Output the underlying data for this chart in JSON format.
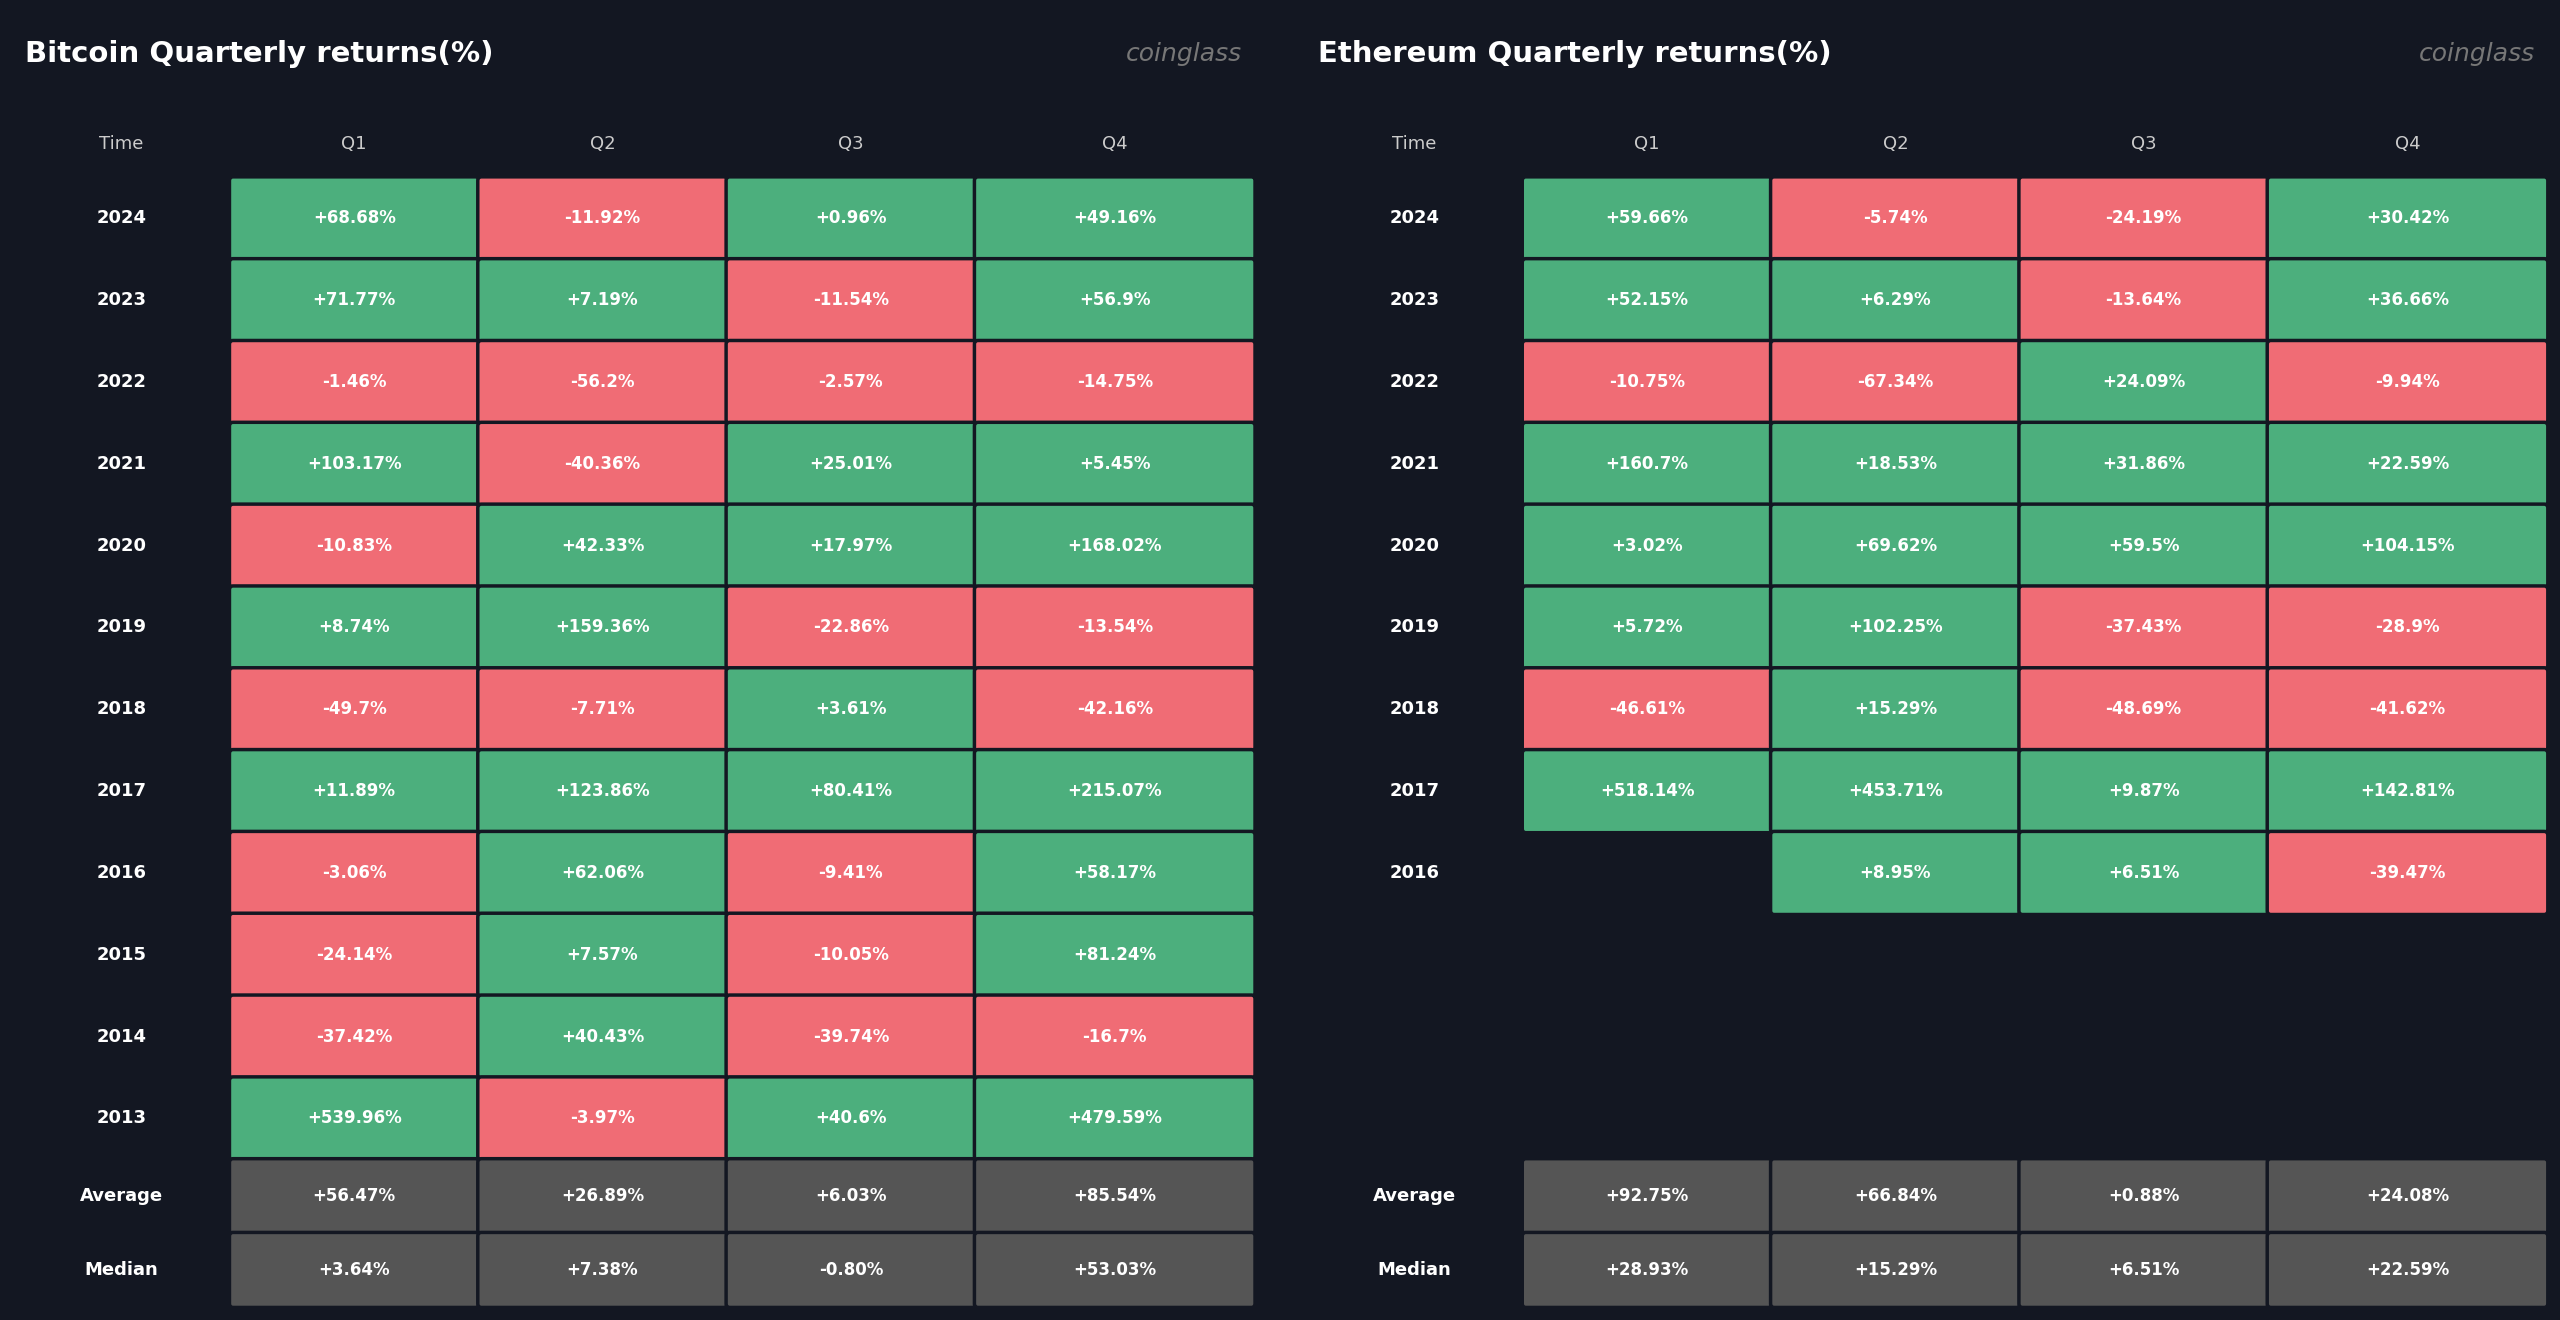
{
  "bg_color": "#131722",
  "cell_green": "#4CAF7D",
  "cell_red": "#F06C75",
  "cell_gray": "#555555",
  "text_color": "#FFFFFF",
  "header_color": "#CCCCCC",
  "title_color": "#FFFFFF",
  "coinglass_color": "#777777",
  "btc_title": "Bitcoin Quarterly returns(%)",
  "eth_title": "Ethereum Quarterly returns(%)",
  "coinglass_text": "coinglass",
  "columns": [
    "Time",
    "Q1",
    "Q2",
    "Q3",
    "Q4"
  ],
  "btc_rows": [
    [
      "2024",
      "+68.68%",
      "-11.92%",
      "+0.96%",
      "+49.16%"
    ],
    [
      "2023",
      "+71.77%",
      "+7.19%",
      "-11.54%",
      "+56.9%"
    ],
    [
      "2022",
      "-1.46%",
      "-56.2%",
      "-2.57%",
      "-14.75%"
    ],
    [
      "2021",
      "+103.17%",
      "-40.36%",
      "+25.01%",
      "+5.45%"
    ],
    [
      "2020",
      "-10.83%",
      "+42.33%",
      "+17.97%",
      "+168.02%"
    ],
    [
      "2019",
      "+8.74%",
      "+159.36%",
      "-22.86%",
      "-13.54%"
    ],
    [
      "2018",
      "-49.7%",
      "-7.71%",
      "+3.61%",
      "-42.16%"
    ],
    [
      "2017",
      "+11.89%",
      "+123.86%",
      "+80.41%",
      "+215.07%"
    ],
    [
      "2016",
      "-3.06%",
      "+62.06%",
      "-9.41%",
      "+58.17%"
    ],
    [
      "2015",
      "-24.14%",
      "+7.57%",
      "-10.05%",
      "+81.24%"
    ],
    [
      "2014",
      "-37.42%",
      "+40.43%",
      "-39.74%",
      "-16.7%"
    ],
    [
      "2013",
      "+539.96%",
      "-3.97%",
      "+40.6%",
      "+479.59%"
    ]
  ],
  "btc_average": [
    "+56.47%",
    "+26.89%",
    "+6.03%",
    "+85.54%"
  ],
  "btc_median": [
    "+3.64%",
    "+7.38%",
    "-0.80%",
    "+53.03%"
  ],
  "eth_rows": [
    [
      "2024",
      "+59.66%",
      "-5.74%",
      "-24.19%",
      "+30.42%"
    ],
    [
      "2023",
      "+52.15%",
      "+6.29%",
      "-13.64%",
      "+36.66%"
    ],
    [
      "2022",
      "-10.75%",
      "-67.34%",
      "+24.09%",
      "-9.94%"
    ],
    [
      "2021",
      "+160.7%",
      "+18.53%",
      "+31.86%",
      "+22.59%"
    ],
    [
      "2020",
      "+3.02%",
      "+69.62%",
      "+59.5%",
      "+104.15%"
    ],
    [
      "2019",
      "+5.72%",
      "+102.25%",
      "-37.43%",
      "-28.9%"
    ],
    [
      "2018",
      "-46.61%",
      "+15.29%",
      "-48.69%",
      "-41.62%"
    ],
    [
      "2017",
      "+518.14%",
      "+453.71%",
      "+9.87%",
      "+142.81%"
    ],
    [
      "2016",
      "",
      "+8.95%",
      "+6.51%",
      "-39.47%"
    ]
  ],
  "eth_average": [
    "+92.75%",
    "+66.84%",
    "+0.88%",
    "+24.08%"
  ],
  "eth_median": [
    "+28.93%",
    "+15.29%",
    "+6.51%",
    "+22.59%"
  ]
}
